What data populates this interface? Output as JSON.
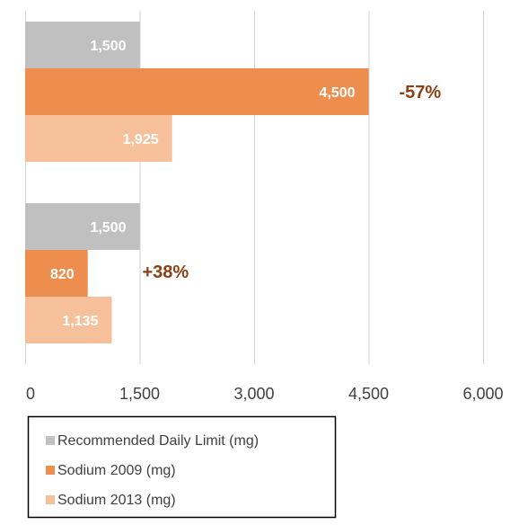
{
  "chart_data": {
    "type": "bar",
    "orientation": "horizontal",
    "xlim": [
      0,
      6000
    ],
    "x_ticks": [
      0,
      1500,
      3000,
      4500,
      6000
    ],
    "x_tick_labels": [
      "0",
      "1,500",
      "3,000",
      "4,500",
      "6,000"
    ],
    "grid": "vertical",
    "legend_position": "bottom-left",
    "groups": [
      {
        "bars": [
          {
            "series": "Recommended Daily Limit (mg)",
            "value": 1500,
            "label": "1,500"
          },
          {
            "series": "Sodium 2009 (mg)",
            "value": 4500,
            "label": "4,500"
          },
          {
            "series": "Sodium 2013 (mg)",
            "value": 1925,
            "label": "1,925"
          }
        ],
        "annotation": "-57%"
      },
      {
        "bars": [
          {
            "series": "Recommended Daily Limit (mg)",
            "value": 1500,
            "label": "1,500"
          },
          {
            "series": "Sodium 2009 (mg)",
            "value": 820,
            "label": "820"
          },
          {
            "series": "Sodium 2013 (mg)",
            "value": 1135,
            "label": "1,135"
          }
        ],
        "annotation": "+38%"
      }
    ],
    "series": [
      {
        "name": "Recommended Daily Limit (mg)",
        "color": "#c0c0c0"
      },
      {
        "name": "Sodium 2009 (mg)",
        "color": "#ee8e4e"
      },
      {
        "name": "Sodium 2013 (mg)",
        "color": "#f6c09b"
      }
    ],
    "annotation_color": "#8b3f14",
    "data_label_color": "#ffffff"
  }
}
